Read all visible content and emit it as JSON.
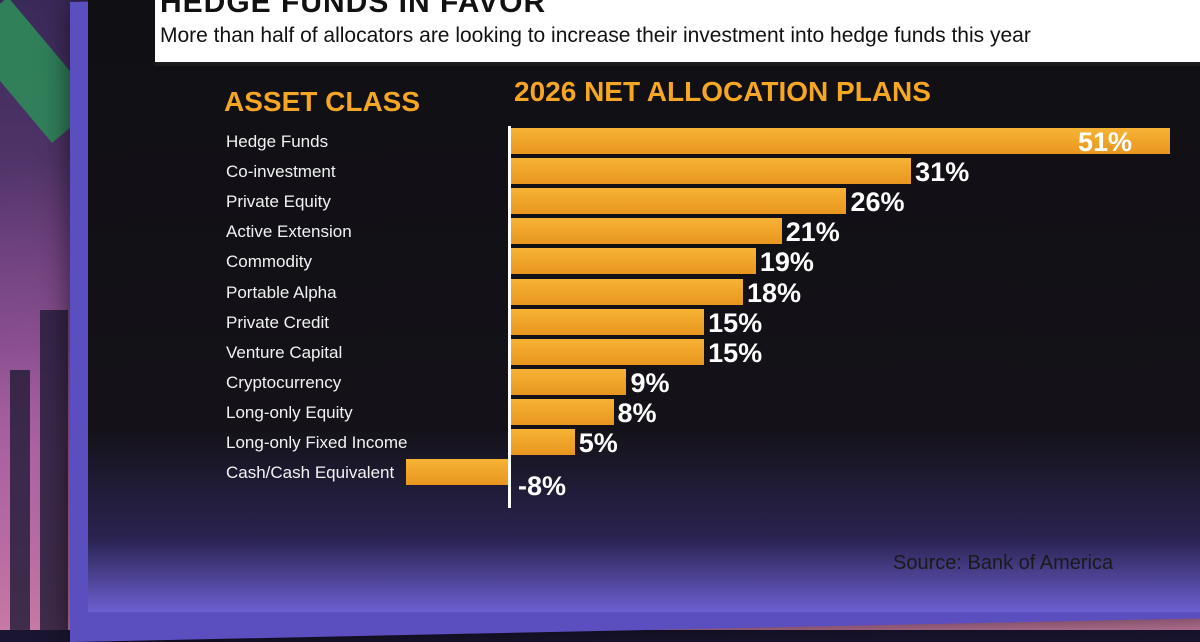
{
  "header": {
    "title": "HEDGE FUNDS IN FAVOR",
    "subtitle": "More than half of allocators are looking to increase their investment into hedge funds this year"
  },
  "source": "Source: Bank of America",
  "chart_data": {
    "type": "bar",
    "orientation": "horizontal",
    "category_header": "ASSET CLASS",
    "value_header": "2026 NET ALLOCATION PLANS",
    "categories": [
      "Hedge Funds",
      "Co-investment",
      "Private Equity",
      "Active Extension",
      "Commodity",
      "Portable Alpha",
      "Private Credit",
      "Venture Capital",
      "Cryptocurrency",
      "Long-only Equity",
      "Long-only Fixed Income",
      "Cash/Cash Equivalent"
    ],
    "values": [
      51,
      31,
      26,
      21,
      19,
      18,
      15,
      15,
      9,
      8,
      5,
      -8
    ],
    "value_labels": [
      "51%",
      "31%",
      "26%",
      "21%",
      "19%",
      "18%",
      "15%",
      "15%",
      "9%",
      "8%",
      "5%",
      "-8%"
    ],
    "unit": "%",
    "colors": {
      "bar": "#f5a623",
      "header": "#f5a623",
      "label": "#ffffff"
    },
    "grid": false,
    "legend": "none"
  }
}
